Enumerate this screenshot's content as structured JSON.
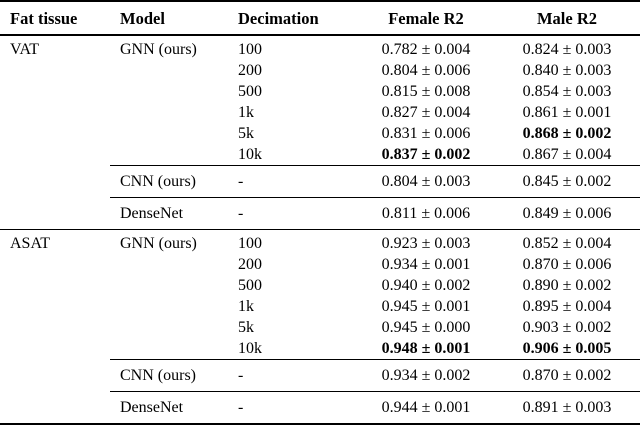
{
  "page": {
    "background_color": "#ffffff",
    "text_color": "#000000"
  },
  "table": {
    "headers": {
      "fat_tissue": "Fat tissue",
      "model": "Model",
      "decimation": "Decimation",
      "female_r2": "Female R2",
      "male_r2": "Male R2"
    },
    "groups": [
      {
        "tissue": "VAT",
        "models": [
          {
            "name": "GNN (ours)",
            "rows": [
              {
                "decimation": "100",
                "female": "0.782 ± 0.004",
                "female_bold": "false",
                "male": "0.824 ± 0.003",
                "male_bold": "false"
              },
              {
                "decimation": "200",
                "female": "0.804 ± 0.006",
                "female_bold": "false",
                "male": "0.840 ± 0.003",
                "male_bold": "false"
              },
              {
                "decimation": "500",
                "female": "0.815 ± 0.008",
                "female_bold": "false",
                "male": "0.854 ± 0.003",
                "male_bold": "false"
              },
              {
                "decimation": "1k",
                "female": "0.827 ± 0.004",
                "female_bold": "false",
                "male": "0.861 ± 0.001",
                "male_bold": "false"
              },
              {
                "decimation": "5k",
                "female": "0.831 ± 0.006",
                "female_bold": "false",
                "male": "0.868 ± 0.002",
                "male_bold": "true"
              },
              {
                "decimation": "10k",
                "female": "0.837 ± 0.002",
                "female_bold": "true",
                "male": "0.867 ± 0.004",
                "male_bold": "false"
              }
            ]
          },
          {
            "name": "CNN (ours)",
            "rows": [
              {
                "decimation": "-",
                "female": "0.804 ± 0.003",
                "female_bold": "false",
                "male": "0.845 ± 0.002",
                "male_bold": "false"
              }
            ]
          },
          {
            "name": "DenseNet",
            "rows": [
              {
                "decimation": "-",
                "female": "0.811 ± 0.006",
                "female_bold": "false",
                "male": "0.849 ± 0.006",
                "male_bold": "false"
              }
            ]
          }
        ]
      },
      {
        "tissue": "ASAT",
        "models": [
          {
            "name": "GNN (ours)",
            "rows": [
              {
                "decimation": "100",
                "female": "0.923 ± 0.003",
                "female_bold": "false",
                "male": "0.852 ± 0.004",
                "male_bold": "false"
              },
              {
                "decimation": "200",
                "female": "0.934 ± 0.001",
                "female_bold": "false",
                "male": "0.870 ± 0.006",
                "male_bold": "false"
              },
              {
                "decimation": "500",
                "female": "0.940 ± 0.002",
                "female_bold": "false",
                "male": "0.890 ± 0.002",
                "male_bold": "false"
              },
              {
                "decimation": "1k",
                "female": "0.945 ± 0.001",
                "female_bold": "false",
                "male": "0.895 ± 0.004",
                "male_bold": "false"
              },
              {
                "decimation": "5k",
                "female": "0.945 ± 0.000",
                "female_bold": "false",
                "male": "0.903 ± 0.002",
                "male_bold": "false"
              },
              {
                "decimation": "10k",
                "female": "0.948 ± 0.001",
                "female_bold": "true",
                "male": "0.906 ± 0.005",
                "male_bold": "true"
              }
            ]
          },
          {
            "name": "CNN (ours)",
            "rows": [
              {
                "decimation": "-",
                "female": "0.934 ± 0.002",
                "female_bold": "false",
                "male": "0.870 ± 0.002",
                "male_bold": "false"
              }
            ]
          },
          {
            "name": "DenseNet",
            "rows": [
              {
                "decimation": "-",
                "female": "0.944 ± 0.001",
                "female_bold": "false",
                "male": "0.891 ± 0.003",
                "male_bold": "false"
              }
            ]
          }
        ]
      }
    ]
  },
  "chart_data": {
    "type": "table",
    "columns": [
      "Fat tissue",
      "Model",
      "Decimation",
      "Female R2",
      "Male R2"
    ],
    "rows": [
      [
        "VAT",
        "GNN (ours)",
        "100",
        "0.782 ± 0.004",
        "0.824 ± 0.003"
      ],
      [
        "",
        "",
        "200",
        "0.804 ± 0.006",
        "0.840 ± 0.003"
      ],
      [
        "",
        "",
        "500",
        "0.815 ± 0.008",
        "0.854 ± 0.003"
      ],
      [
        "",
        "",
        "1k",
        "0.827 ± 0.004",
        "0.861 ± 0.001"
      ],
      [
        "",
        "",
        "5k",
        "0.831 ± 0.006",
        "0.868 ± 0.002"
      ],
      [
        "",
        "",
        "10k",
        "0.837 ± 0.002",
        "0.867 ± 0.004"
      ],
      [
        "",
        "CNN (ours)",
        "-",
        "0.804 ± 0.003",
        "0.845 ± 0.002"
      ],
      [
        "",
        "DenseNet",
        "-",
        "0.811 ± 0.006",
        "0.849 ± 0.006"
      ],
      [
        "ASAT",
        "GNN (ours)",
        "100",
        "0.923 ± 0.003",
        "0.852 ± 0.004"
      ],
      [
        "",
        "",
        "200",
        "0.934 ± 0.001",
        "0.870 ± 0.006"
      ],
      [
        "",
        "",
        "500",
        "0.940 ± 0.002",
        "0.890 ± 0.002"
      ],
      [
        "",
        "",
        "1k",
        "0.945 ± 0.001",
        "0.895 ± 0.004"
      ],
      [
        "",
        "",
        "5k",
        "0.945 ± 0.000",
        "0.903 ± 0.002"
      ],
      [
        "",
        "",
        "10k",
        "0.948 ± 0.001",
        "0.906 ± 0.005"
      ],
      [
        "",
        "CNN (ours)",
        "-",
        "0.934 ± 0.002",
        "0.870 ± 0.002"
      ],
      [
        "",
        "DenseNet",
        "-",
        "0.944 ± 0.001",
        "0.891 ± 0.003"
      ]
    ],
    "bold_cells": [
      "VAT / GNN (ours) / 5k / Male R2",
      "VAT / GNN (ours) / 10k / Female R2",
      "ASAT / GNN (ours) / 10k / Female R2",
      "ASAT / GNN (ours) / 10k / Male R2"
    ]
  }
}
